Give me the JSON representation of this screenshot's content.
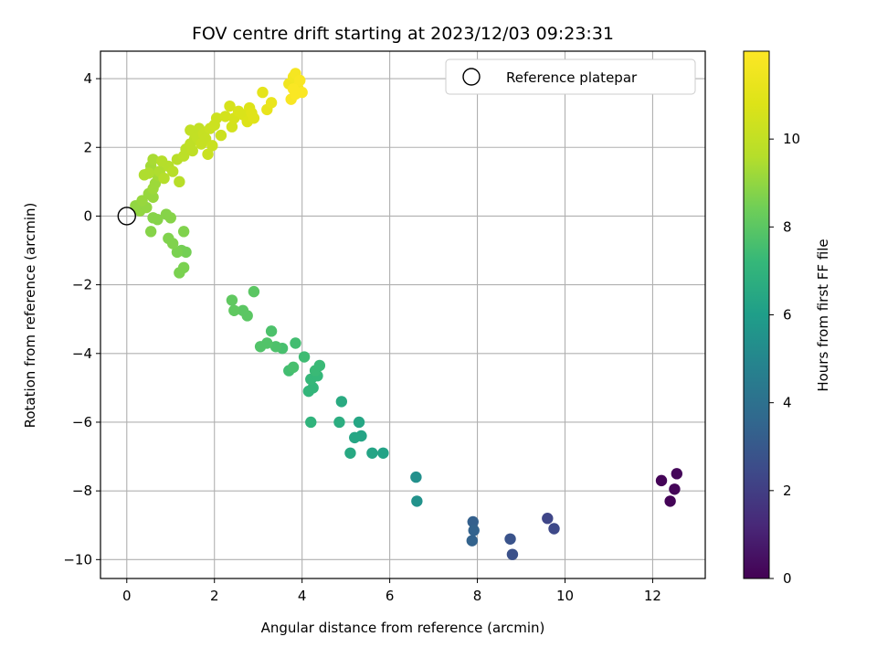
{
  "chart_data": {
    "type": "scatter",
    "title": "FOV centre drift starting at 2023/12/03 09:23:31",
    "xlabel": "Angular distance from reference (arcmin)",
    "ylabel": "Rotation from reference (arcmin)",
    "xlim": [
      -0.6,
      13.2
    ],
    "ylim": [
      -10.55,
      4.8
    ],
    "xticks": [
      0,
      2,
      4,
      6,
      8,
      10,
      12
    ],
    "yticks": [
      -10,
      -8,
      -6,
      -4,
      -2,
      0,
      2,
      4
    ],
    "grid": true,
    "legend": {
      "position": "top-right",
      "entries": [
        "Reference platepar"
      ]
    },
    "reference_point": {
      "x": 0,
      "y": 0,
      "label": "Reference platepar"
    },
    "colorbar": {
      "label": "Hours from first FF file",
      "colormap": "viridis",
      "range": [
        0,
        12
      ],
      "ticks": [
        0,
        2,
        4,
        6,
        8,
        10
      ]
    },
    "points": [
      {
        "x": 12.2,
        "y": -7.7,
        "h": 0.1
      },
      {
        "x": 12.4,
        "y": -8.3,
        "h": 0.1
      },
      {
        "x": 12.5,
        "y": -7.95,
        "h": 0.15
      },
      {
        "x": 12.55,
        "y": -7.5,
        "h": 0.2
      },
      {
        "x": 9.6,
        "y": -8.8,
        "h": 2.3
      },
      {
        "x": 9.75,
        "y": -9.1,
        "h": 2.4
      },
      {
        "x": 8.8,
        "y": -9.85,
        "h": 2.7
      },
      {
        "x": 8.75,
        "y": -9.4,
        "h": 2.8
      },
      {
        "x": 7.9,
        "y": -8.9,
        "h": 3.3
      },
      {
        "x": 7.92,
        "y": -9.15,
        "h": 3.4
      },
      {
        "x": 7.88,
        "y": -9.45,
        "h": 3.4
      },
      {
        "x": 6.6,
        "y": -7.6,
        "h": 5.4
      },
      {
        "x": 6.62,
        "y": -8.3,
        "h": 5.5
      },
      {
        "x": 5.85,
        "y": -6.9,
        "h": 6.2
      },
      {
        "x": 5.6,
        "y": -6.9,
        "h": 6.3
      },
      {
        "x": 5.35,
        "y": -6.4,
        "h": 6.3
      },
      {
        "x": 5.3,
        "y": -6.0,
        "h": 6.4
      },
      {
        "x": 5.2,
        "y": -6.45,
        "h": 6.4
      },
      {
        "x": 5.1,
        "y": -6.9,
        "h": 6.5
      },
      {
        "x": 4.9,
        "y": -5.4,
        "h": 6.6
      },
      {
        "x": 4.85,
        "y": -6.0,
        "h": 6.7
      },
      {
        "x": 4.2,
        "y": -6.0,
        "h": 7.0
      },
      {
        "x": 4.15,
        "y": -5.1,
        "h": 7.1
      },
      {
        "x": 4.25,
        "y": -5.0,
        "h": 7.1
      },
      {
        "x": 4.2,
        "y": -4.75,
        "h": 7.2
      },
      {
        "x": 4.35,
        "y": -4.65,
        "h": 7.2
      },
      {
        "x": 4.3,
        "y": -4.5,
        "h": 7.3
      },
      {
        "x": 4.4,
        "y": -4.35,
        "h": 7.3
      },
      {
        "x": 4.05,
        "y": -4.1,
        "h": 7.4
      },
      {
        "x": 3.85,
        "y": -3.7,
        "h": 7.5
      },
      {
        "x": 3.7,
        "y": -4.5,
        "h": 7.5
      },
      {
        "x": 3.8,
        "y": -4.4,
        "h": 7.6
      },
      {
        "x": 3.55,
        "y": -3.85,
        "h": 7.6
      },
      {
        "x": 3.4,
        "y": -3.8,
        "h": 7.7
      },
      {
        "x": 3.3,
        "y": -3.35,
        "h": 7.7
      },
      {
        "x": 3.2,
        "y": -3.7,
        "h": 7.8
      },
      {
        "x": 3.05,
        "y": -3.8,
        "h": 7.8
      },
      {
        "x": 2.9,
        "y": -2.2,
        "h": 8.0
      },
      {
        "x": 2.75,
        "y": -2.9,
        "h": 8.0
      },
      {
        "x": 2.65,
        "y": -2.75,
        "h": 8.0
      },
      {
        "x": 2.45,
        "y": -2.75,
        "h": 8.1
      },
      {
        "x": 2.4,
        "y": -2.45,
        "h": 8.1
      },
      {
        "x": 1.35,
        "y": -1.05,
        "h": 8.5
      },
      {
        "x": 1.25,
        "y": -1.0,
        "h": 8.5
      },
      {
        "x": 1.3,
        "y": -1.5,
        "h": 8.6
      },
      {
        "x": 1.2,
        "y": -1.65,
        "h": 8.6
      },
      {
        "x": 1.15,
        "y": -1.05,
        "h": 8.6
      },
      {
        "x": 1.05,
        "y": -0.8,
        "h": 8.7
      },
      {
        "x": 0.95,
        "y": -0.65,
        "h": 8.7
      },
      {
        "x": 1.3,
        "y": -0.45,
        "h": 8.7
      },
      {
        "x": 1.0,
        "y": -0.05,
        "h": 8.8
      },
      {
        "x": 0.9,
        "y": 0.05,
        "h": 8.8
      },
      {
        "x": 0.6,
        "y": -0.05,
        "h": 8.8
      },
      {
        "x": 0.7,
        "y": -0.1,
        "h": 8.8
      },
      {
        "x": 0.55,
        "y": -0.45,
        "h": 8.8
      },
      {
        "x": 0.3,
        "y": 0.15,
        "h": 9.0
      },
      {
        "x": 0.2,
        "y": 0.3,
        "h": 9.0
      },
      {
        "x": 0.45,
        "y": 0.25,
        "h": 9.0
      },
      {
        "x": 0.35,
        "y": 0.45,
        "h": 9.1
      },
      {
        "x": 0.6,
        "y": 0.55,
        "h": 9.1
      },
      {
        "x": 0.5,
        "y": 0.65,
        "h": 9.1
      },
      {
        "x": 0.6,
        "y": 0.8,
        "h": 9.2
      },
      {
        "x": 0.65,
        "y": 0.95,
        "h": 9.2
      },
      {
        "x": 0.7,
        "y": 1.2,
        "h": 9.3
      },
      {
        "x": 0.55,
        "y": 1.45,
        "h": 9.3
      },
      {
        "x": 0.6,
        "y": 1.65,
        "h": 9.4
      },
      {
        "x": 0.4,
        "y": 1.2,
        "h": 9.5
      },
      {
        "x": 0.5,
        "y": 1.25,
        "h": 9.5
      },
      {
        "x": 0.75,
        "y": 1.3,
        "h": 9.5
      },
      {
        "x": 0.85,
        "y": 1.1,
        "h": 9.6
      },
      {
        "x": 0.95,
        "y": 1.45,
        "h": 9.6
      },
      {
        "x": 0.8,
        "y": 1.6,
        "h": 9.6
      },
      {
        "x": 1.05,
        "y": 1.3,
        "h": 9.7
      },
      {
        "x": 1.15,
        "y": 1.65,
        "h": 9.7
      },
      {
        "x": 1.2,
        "y": 1.0,
        "h": 9.7
      },
      {
        "x": 1.3,
        "y": 1.75,
        "h": 9.8
      },
      {
        "x": 1.35,
        "y": 1.95,
        "h": 9.8
      },
      {
        "x": 1.45,
        "y": 2.1,
        "h": 9.9
      },
      {
        "x": 1.5,
        "y": 1.9,
        "h": 9.9
      },
      {
        "x": 1.55,
        "y": 2.25,
        "h": 9.9
      },
      {
        "x": 1.45,
        "y": 2.5,
        "h": 10.0
      },
      {
        "x": 1.6,
        "y": 2.3,
        "h": 10.0
      },
      {
        "x": 1.65,
        "y": 2.55,
        "h": 10.0
      },
      {
        "x": 1.7,
        "y": 2.1,
        "h": 10.1
      },
      {
        "x": 1.75,
        "y": 2.4,
        "h": 10.1
      },
      {
        "x": 1.8,
        "y": 2.25,
        "h": 10.1
      },
      {
        "x": 1.85,
        "y": 1.8,
        "h": 10.2
      },
      {
        "x": 1.9,
        "y": 2.55,
        "h": 10.2
      },
      {
        "x": 1.95,
        "y": 2.05,
        "h": 10.2
      },
      {
        "x": 2.0,
        "y": 2.65,
        "h": 10.3
      },
      {
        "x": 2.05,
        "y": 2.85,
        "h": 10.3
      },
      {
        "x": 2.15,
        "y": 2.35,
        "h": 10.3
      },
      {
        "x": 2.25,
        "y": 2.9,
        "h": 10.5
      },
      {
        "x": 2.4,
        "y": 2.6,
        "h": 10.5
      },
      {
        "x": 2.45,
        "y": 2.85,
        "h": 10.6
      },
      {
        "x": 2.35,
        "y": 3.2,
        "h": 10.6
      },
      {
        "x": 2.55,
        "y": 3.05,
        "h": 10.7
      },
      {
        "x": 2.65,
        "y": 2.95,
        "h": 10.7
      },
      {
        "x": 2.75,
        "y": 2.75,
        "h": 10.8
      },
      {
        "x": 2.8,
        "y": 3.15,
        "h": 10.8
      },
      {
        "x": 2.9,
        "y": 2.85,
        "h": 10.9
      },
      {
        "x": 2.85,
        "y": 3.0,
        "h": 10.9
      },
      {
        "x": 3.1,
        "y": 3.6,
        "h": 11.1
      },
      {
        "x": 3.2,
        "y": 3.1,
        "h": 11.2
      },
      {
        "x": 3.3,
        "y": 3.3,
        "h": 11.3
      },
      {
        "x": 3.7,
        "y": 3.85,
        "h": 11.5
      },
      {
        "x": 3.8,
        "y": 4.05,
        "h": 11.6
      },
      {
        "x": 3.85,
        "y": 4.15,
        "h": 11.7
      },
      {
        "x": 3.9,
        "y": 3.75,
        "h": 11.7
      },
      {
        "x": 3.95,
        "y": 3.95,
        "h": 11.8
      },
      {
        "x": 3.75,
        "y": 3.4,
        "h": 11.8
      },
      {
        "x": 3.85,
        "y": 3.55,
        "h": 11.9
      },
      {
        "x": 4.0,
        "y": 3.6,
        "h": 11.9
      },
      {
        "x": 3.8,
        "y": 3.7,
        "h": 11.9
      }
    ]
  }
}
